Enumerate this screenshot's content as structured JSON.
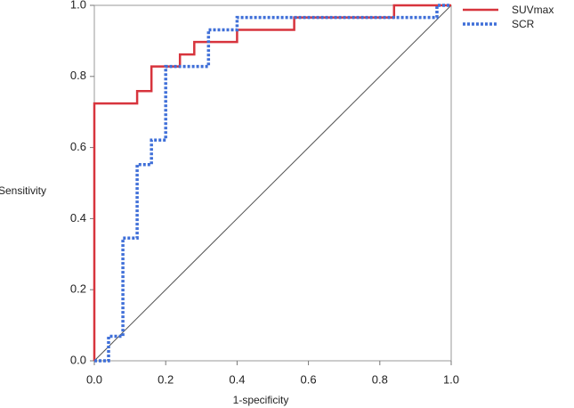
{
  "chart_data": {
    "type": "line",
    "xlabel": "1-specificity",
    "ylabel": "Sensitivity",
    "xlim": [
      0,
      1
    ],
    "ylim": [
      0,
      1
    ],
    "xticks": [
      {
        "value": 0,
        "label": "0.0"
      },
      0.2,
      0.4,
      0.6,
      0.8,
      {
        "value": 1,
        "label": "1.0"
      }
    ],
    "yticks": [
      {
        "value": 0,
        "label": "0.0"
      },
      0.2,
      0.4,
      0.6,
      0.8,
      {
        "value": 1,
        "label": "1.0"
      }
    ],
    "series": [
      {
        "name": "SUVmax",
        "color": "#d7343d",
        "line_style": "solid",
        "x": [
          0,
          0,
          0.12,
          0.12,
          0.16,
          0.16,
          0.24,
          0.24,
          0.28,
          0.28,
          0.4,
          0.4,
          0.56,
          0.56,
          0.84,
          0.84,
          1
        ],
        "values": [
          0,
          0.724,
          0.724,
          0.759,
          0.759,
          0.828,
          0.828,
          0.862,
          0.862,
          0.897,
          0.897,
          0.931,
          0.931,
          0.966,
          0.966,
          1,
          1
        ]
      },
      {
        "name": "SCR",
        "color": "#3f6fd8",
        "line_style": "dashed",
        "x": [
          0,
          0.04,
          0.04,
          0.08,
          0.08,
          0.12,
          0.12,
          0.16,
          0.16,
          0.2,
          0.2,
          0.32,
          0.32,
          0.4,
          0.4,
          0.96,
          0.96,
          1
        ],
        "values": [
          0,
          0,
          0.069,
          0.069,
          0.345,
          0.345,
          0.552,
          0.552,
          0.621,
          0.621,
          0.828,
          0.828,
          0.931,
          0.931,
          0.966,
          0.966,
          1,
          1
        ]
      }
    ]
  }
}
